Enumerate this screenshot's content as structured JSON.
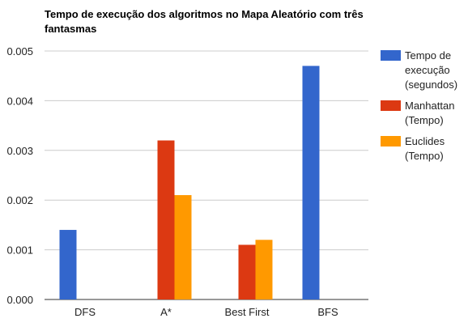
{
  "chart_data": {
    "type": "bar",
    "title_lines": [
      "Tempo de execução dos algoritmos no Mapa Aleatório com três",
      "fantasmas"
    ],
    "categories": [
      "DFS",
      "A*",
      "Best First",
      "BFS"
    ],
    "series": [
      {
        "name_lines": [
          "Tempo de",
          "execução",
          "(segundos)"
        ],
        "color": "#3366cc",
        "values": [
          0.0014,
          null,
          null,
          0.0047
        ]
      },
      {
        "name_lines": [
          "Manhattan",
          "(Tempo)"
        ],
        "color": "#dc3912",
        "values": [
          null,
          0.0032,
          0.0011,
          null
        ]
      },
      {
        "name_lines": [
          "Euclides",
          "(Tempo)"
        ],
        "color": "#ff9900",
        "values": [
          null,
          0.0021,
          0.0012,
          null
        ]
      }
    ],
    "ylim": [
      0,
      0.005
    ],
    "yticks": [
      "0.000",
      "0.001",
      "0.002",
      "0.003",
      "0.004",
      "0.005"
    ],
    "grid": true,
    "legend": "right"
  }
}
